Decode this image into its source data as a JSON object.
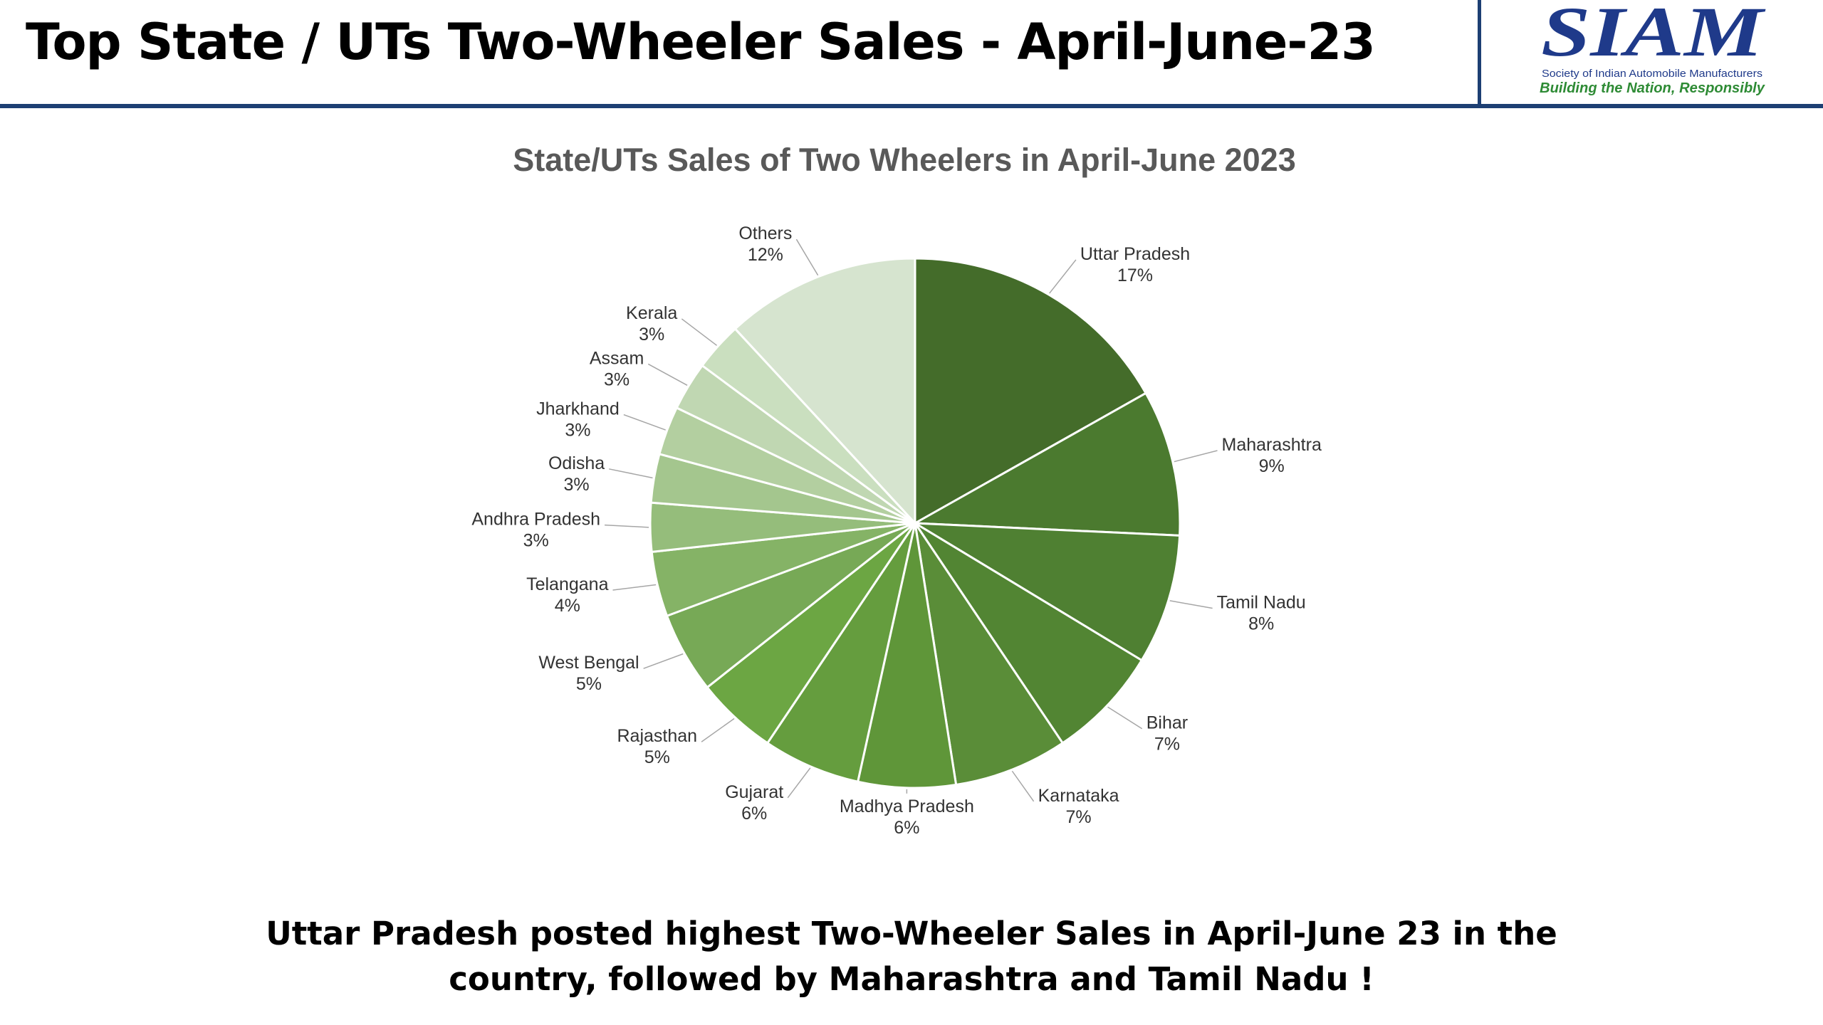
{
  "header": {
    "title": "Top State / UTs Two-Wheeler Sales - April-June-23",
    "logo": {
      "name": "SIAM",
      "subtitle": "Society of Indian Automobile Manufacturers",
      "tagline": "Building the Nation, Responsibly"
    }
  },
  "chart_data": {
    "type": "pie",
    "title": "State/UTs Sales of Two Wheelers in April-June 2023",
    "start": "12 o'clock, clockwise",
    "slices": [
      {
        "label": "Uttar Pradesh",
        "value": 17,
        "display": "17%",
        "color": "#446c2a"
      },
      {
        "label": "Maharashtra",
        "value": 9,
        "display": "9%",
        "color": "#4b7a2f"
      },
      {
        "label": "Tamil Nadu",
        "value": 8,
        "display": "8%",
        "color": "#4f8032"
      },
      {
        "label": "Bihar",
        "value": 7,
        "display": "7%",
        "color": "#528533"
      },
      {
        "label": "Karnataka",
        "value": 7,
        "display": "7%",
        "color": "#5a8d38"
      },
      {
        "label": "Madhya Pradesh",
        "value": 6,
        "display": "6%",
        "color": "#5f9639"
      },
      {
        "label": "Gujarat",
        "value": 6,
        "display": "6%",
        "color": "#659d3e"
      },
      {
        "label": "Rajasthan",
        "value": 5,
        "display": "5%",
        "color": "#6ca643"
      },
      {
        "label": "West Bengal",
        "value": 5,
        "display": "5%",
        "color": "#77a956"
      },
      {
        "label": "Telangana",
        "value": 4,
        "display": "4%",
        "color": "#85b366"
      },
      {
        "label": "Andhra Pradesh",
        "value": 3,
        "display": "3%",
        "color": "#95bd7b"
      },
      {
        "label": "Odisha",
        "value": 3,
        "display": "3%",
        "color": "#a4c68e"
      },
      {
        "label": "Jharkhand",
        "value": 3,
        "display": "3%",
        "color": "#b3cfa0"
      },
      {
        "label": "Assam",
        "value": 3,
        "display": "3%",
        "color": "#c0d7b2"
      },
      {
        "label": "Kerala",
        "value": 3,
        "display": "3%",
        "color": "#cadfbf"
      },
      {
        "label": "Others",
        "value": 12,
        "display": "12%",
        "color": "#d6e4cf"
      }
    ]
  },
  "caption": {
    "line1": "Uttar Pradesh posted highest Two-Wheeler Sales in April-June 23 in the",
    "line2": "country, followed by Maharashtra and Tamil Nadu !"
  },
  "colors": {
    "accent": "#1d3f73",
    "logo_blue": "#1f3a8a",
    "logo_green": "#2e8b35",
    "chart_text": "#333333",
    "chart_title": "#595959"
  }
}
